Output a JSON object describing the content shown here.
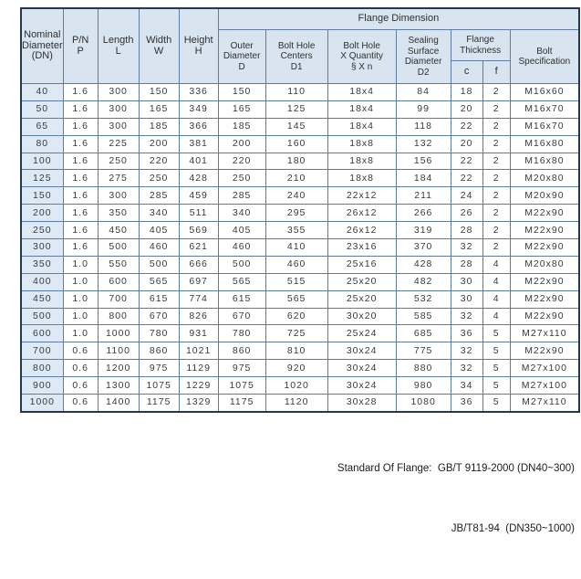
{
  "headers": {
    "nominal_diameter": "Nominal\nDiameter\n(DN)",
    "pn": "P/N\nP",
    "length": "Length\nL",
    "width": "Width\nW",
    "height": "Height\nH",
    "flange_dimension": "Flange Dimension",
    "outer_diameter": "Outer\nDiameter\nD",
    "bolt_hole_centers": "Bolt Hole\nCenters\nD1",
    "bolt_hole_quantity": "Bolt Hole\nX Quantity\n§ X n",
    "sealing_surface_diameter": "Sealing\nSurface\nDiameter\nD2",
    "flange_thickness": "Flange\nThickness",
    "c": "c",
    "f": "f",
    "bolt_specification": "Bolt\nSpecification"
  },
  "chart_data": {
    "type": "table",
    "title": "Flange Dimension",
    "column_headers": [
      "Nominal Diameter (DN)",
      "P/N P",
      "Length L",
      "Width W",
      "Height H",
      "Outer Diameter D",
      "Bolt Hole Centers D1",
      "Bolt Hole X Quantity § X n",
      "Sealing Surface Diameter D2",
      "Flange Thickness c",
      "Flange Thickness f",
      "Bolt Specification"
    ],
    "rows": [
      [
        "40",
        "1.6",
        "300",
        "150",
        "336",
        "150",
        "110",
        "18x4",
        "84",
        "18",
        "2",
        "M16x60"
      ],
      [
        "50",
        "1.6",
        "300",
        "165",
        "349",
        "165",
        "125",
        "18x4",
        "99",
        "20",
        "2",
        "M16x70"
      ],
      [
        "65",
        "1.6",
        "300",
        "185",
        "366",
        "185",
        "145",
        "18x4",
        "118",
        "22",
        "2",
        "M16x70"
      ],
      [
        "80",
        "1.6",
        "225",
        "200",
        "381",
        "200",
        "160",
        "18x8",
        "132",
        "20",
        "2",
        "M16x80"
      ],
      [
        "100",
        "1.6",
        "250",
        "220",
        "401",
        "220",
        "180",
        "18x8",
        "156",
        "22",
        "2",
        "M16x80"
      ],
      [
        "125",
        "1.6",
        "275",
        "250",
        "428",
        "250",
        "210",
        "18x8",
        "184",
        "22",
        "2",
        "M20x80"
      ],
      [
        "150",
        "1.6",
        "300",
        "285",
        "459",
        "285",
        "240",
        "22x12",
        "211",
        "24",
        "2",
        "M20x90"
      ],
      [
        "200",
        "1.6",
        "350",
        "340",
        "511",
        "340",
        "295",
        "26x12",
        "266",
        "26",
        "2",
        "M22x90"
      ],
      [
        "250",
        "1.6",
        "450",
        "405",
        "569",
        "405",
        "355",
        "26x12",
        "319",
        "28",
        "2",
        "M22x90"
      ],
      [
        "300",
        "1.6",
        "500",
        "460",
        "621",
        "460",
        "410",
        "23x16",
        "370",
        "32",
        "2",
        "M22x90"
      ],
      [
        "350",
        "1.0",
        "550",
        "500",
        "666",
        "500",
        "460",
        "25x16",
        "428",
        "28",
        "4",
        "M20x80"
      ],
      [
        "400",
        "1.0",
        "600",
        "565",
        "697",
        "565",
        "515",
        "25x20",
        "482",
        "30",
        "4",
        "M22x90"
      ],
      [
        "450",
        "1.0",
        "700",
        "615",
        "774",
        "615",
        "565",
        "25x20",
        "532",
        "30",
        "4",
        "M22x90"
      ],
      [
        "500",
        "1.0",
        "800",
        "670",
        "826",
        "670",
        "620",
        "30x20",
        "585",
        "32",
        "4",
        "M22x90"
      ],
      [
        "600",
        "1.0",
        "1000",
        "780",
        "931",
        "780",
        "725",
        "25x24",
        "685",
        "36",
        "5",
        "M27x110"
      ],
      [
        "700",
        "0.6",
        "1100",
        "860",
        "1021",
        "860",
        "810",
        "30x24",
        "775",
        "32",
        "5",
        "M22x90"
      ],
      [
        "800",
        "0.6",
        "1200",
        "975",
        "1129",
        "975",
        "920",
        "30x24",
        "880",
        "32",
        "5",
        "M27x100"
      ],
      [
        "900",
        "0.6",
        "1300",
        "1075",
        "1229",
        "1075",
        "1020",
        "30x24",
        "980",
        "34",
        "5",
        "M27x100"
      ],
      [
        "1000",
        "0.6",
        "1400",
        "1175",
        "1329",
        "1175",
        "1120",
        "30x28",
        "1080",
        "36",
        "5",
        "M27x110"
      ]
    ]
  },
  "footer": {
    "line1": "Standard Of Flange:  GB/T 9119-2000 (DN40~300)",
    "line2": "JB/T81-94  (DN350~1000)"
  },
  "colors": {
    "header_bg": "#d8e5f1",
    "first_column_bg": "#dde9f5",
    "grid_line": "#5b7ca3",
    "outer_border": "#233850",
    "text": "#3a3a3a"
  }
}
